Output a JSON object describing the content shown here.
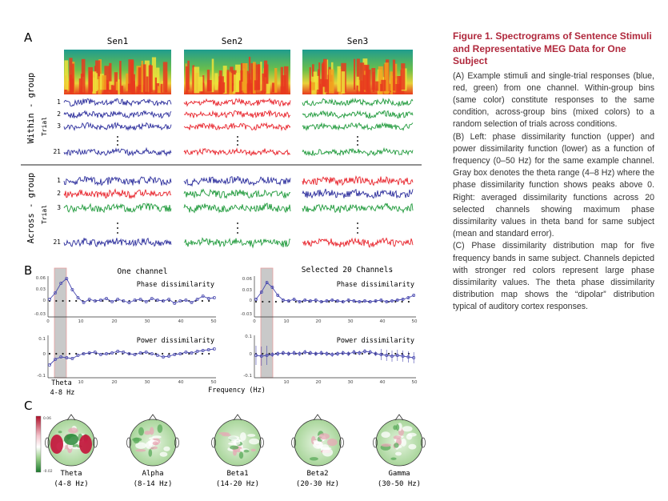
{
  "panels": {
    "a": "A",
    "b": "B",
    "c": "C"
  },
  "panel_a": {
    "columns": [
      "Sen1",
      "Sen2",
      "Sen3"
    ],
    "rows_label_within": "Within - group",
    "rows_label_across": "Across - group",
    "trial_label": "Trial",
    "trial_numbers": [
      "1",
      "2",
      "3",
      "21"
    ],
    "dots": "·\n·\n·"
  },
  "panel_b": {
    "left_title": "One channel",
    "right_title": "Selected 20 Channels",
    "phase_label": "Phase dissimilarity",
    "power_label": "Power dissimilarity",
    "theta_label": "Theta",
    "theta_range": "4-8 Hz",
    "xlabel": "Frequency (Hz)",
    "phase_yticks_left": [
      "0.06",
      "0.03",
      "0",
      "-0.03"
    ],
    "phase_yticks_right": [
      "0.06",
      "0.03",
      "0",
      "-0.03"
    ],
    "power_yticks": [
      "0.1",
      "0",
      "-0.1"
    ],
    "xticks": [
      "0",
      "10",
      "20",
      "30",
      "40",
      "50"
    ]
  },
  "panel_c": {
    "colorbar_top": "0.06",
    "colorbar_bottom": "-0.02",
    "maps": [
      {
        "name": "Theta",
        "range": "(4-8 Hz)"
      },
      {
        "name": "Alpha",
        "range": "(8-14 Hz)"
      },
      {
        "name": "Beta1",
        "range": "(14-20 Hz)"
      },
      {
        "name": "Beta2",
        "range": "(20-30 Hz)"
      },
      {
        "name": "Gamma",
        "range": "(30-50 Hz)"
      }
    ]
  },
  "caption": {
    "title": "Figure 1. Spectrograms of Sentence Stimuli and Representative MEG Data for One Subject",
    "paragraphs": [
      "(A) Example stimuli and single-trial responses (blue, red, green) from one channel. Within-group bins (same color) constitute responses to the same condition, across-group bins (mixed colors) to a random selection of trials across conditions.",
      "(B) Left: phase dissimilarity function (upper) and power dissimilarity function (lower) as a function of frequency (0–50 Hz) for the same example channel. Gray box denotes the theta range (4–8 Hz) where the phase dissimilarity function shows peaks above 0. Right: averaged dissimilarity functions across 20 selected channels showing maximum phase dissimilarity values in theta band for same subject (mean and standard error).",
      "(C) Phase dissimilarity distribution map for five frequency bands in same subject. Channels depicted with stronger red colors represent large phase dissimilarity values. The theta phase dissimilarity distribution map shows the “dipolar” distribution typical of auditory cortex responses."
    ]
  },
  "colors": {
    "blue": "#2b2d9c",
    "red": "#e8232b",
    "green": "#1f9a3b",
    "caption_title": "#b0283c"
  }
}
